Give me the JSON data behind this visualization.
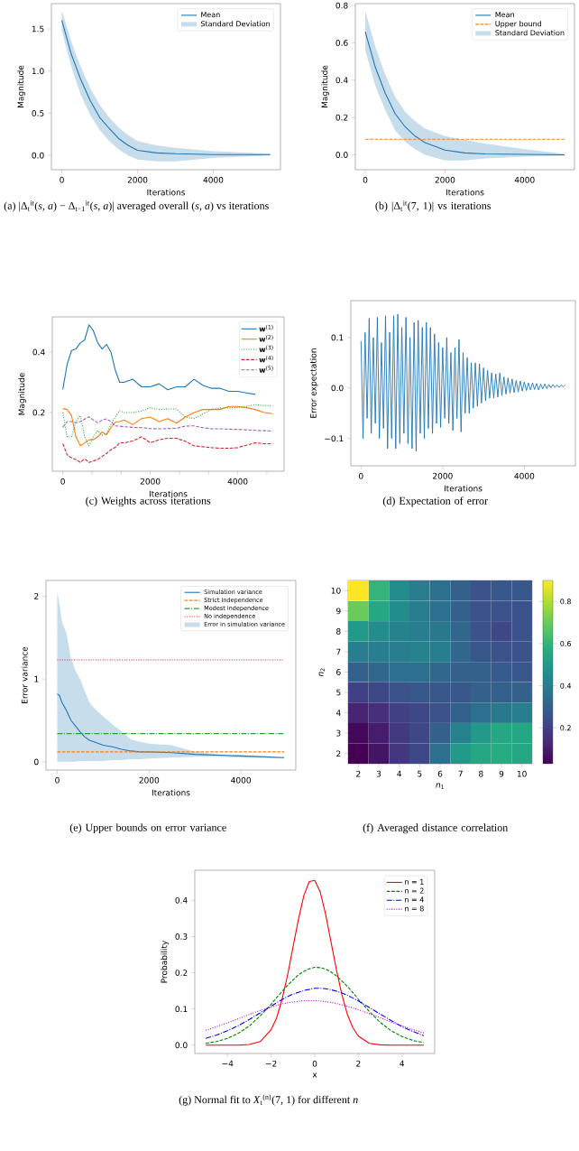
{
  "chart_data": [
    {
      "type": "line",
      "title": "(a) |Δ$_{t}$$^{it}$(*s*, *a*) − Δ$_{t−1}$$^{it}$(*s*, *a*)| averaged overall (*s*, *a*) vs iterations",
      "xlabel": "Iterations",
      "ylabel": "Magnitude",
      "legend": "top right",
      "x": [
        0,
        250,
        500,
        750,
        1000,
        1250,
        1500,
        1750,
        2000,
        2500,
        3000,
        4000,
        5500
      ],
      "series": [
        {
          "name": "Mean",
          "color": "#1f77b4",
          "values": [
            1.6,
            1.2,
            0.9,
            0.65,
            0.45,
            0.32,
            0.2,
            0.12,
            0.06,
            0.03,
            0.02,
            0.01,
            0.01
          ],
          "upper": [
            1.72,
            1.35,
            1.05,
            0.8,
            0.6,
            0.45,
            0.33,
            0.24,
            0.17,
            0.12,
            0.09,
            0.05,
            0.02
          ],
          "lower": [
            1.48,
            1.05,
            0.72,
            0.48,
            0.3,
            0.17,
            0.07,
            0.0,
            -0.05,
            -0.07,
            -0.07,
            -0.03,
            0.0
          ]
        }
      ],
      "annotations": [
        "Standard Deviation"
      ],
      "xlim": [
        -275,
        5775
      ],
      "ylim": [
        -0.17,
        1.8
      ],
      "xticks": [
        0,
        2000,
        4000
      ],
      "yticks": [
        {
          "value": 0,
          "label": "0.0"
        },
        0.5,
        {
          "value": 1,
          "label": "1.0"
        },
        1.5
      ]
    },
    {
      "type": "line",
      "title": "(b) |Δ$_{t}$$^{it}$(7, 1)| vs iterations",
      "xlabel": "Iterations",
      "ylabel": "Magnitude",
      "legend": "top right",
      "x": [
        0,
        250,
        500,
        750,
        1000,
        1250,
        1500,
        2000,
        2500,
        3000,
        4000,
        5000
      ],
      "series": [
        {
          "name": "Mean",
          "color": "#1f77b4",
          "values": [
            0.66,
            0.47,
            0.33,
            0.22,
            0.15,
            0.1,
            0.065,
            0.025,
            0.01,
            0.005,
            0.002,
            0.0
          ],
          "upper": [
            0.77,
            0.58,
            0.43,
            0.31,
            0.23,
            0.18,
            0.14,
            0.1,
            0.08,
            0.06,
            0.03,
            0.005
          ],
          "lower": [
            0.56,
            0.37,
            0.24,
            0.13,
            0.07,
            0.03,
            0.0,
            -0.03,
            -0.03,
            -0.02,
            -0.01,
            -0.005
          ]
        }
      ],
      "annotations": [
        "Standard Deviation"
      ],
      "ref_lines": [
        {
          "axis": "y",
          "value": 0.083,
          "label": "Upper bound",
          "color": "#ff7f0e",
          "line_style": "dashed"
        }
      ],
      "xlim": [
        -250,
        5250
      ],
      "ylim": [
        -0.08,
        0.81
      ],
      "xticks": [
        0,
        2000,
        4000
      ],
      "yticks": [
        {
          "value": 0,
          "label": "0.0"
        },
        0.2,
        0.4,
        0.6,
        0.8
      ]
    },
    {
      "type": "line",
      "title": "(c) Weights across iterations",
      "xlabel": "Iterations",
      "ylabel": "Magnitude",
      "legend": "top right",
      "x": [
        0,
        100,
        200,
        300,
        400,
        500,
        600,
        700,
        800,
        900,
        1000,
        1100,
        1200,
        1300,
        1400,
        1600,
        1800,
        2000,
        2200,
        2400,
        2600,
        2800,
        3000,
        3200,
        3400,
        3600,
        3800,
        4000,
        4200,
        4400,
        4600,
        4800
      ],
      "series": [
        {
          "name": "**w**$^{(1)}$",
          "color": "#1f77b4",
          "line_style": "solid",
          "values": [
            0.276,
            0.36,
            0.405,
            0.41,
            0.43,
            0.44,
            0.49,
            0.47,
            0.43,
            0.41,
            0.425,
            0.4,
            0.34,
            0.3,
            0.3,
            0.31,
            0.285,
            0.285,
            0.295,
            0.275,
            0.285,
            0.285,
            0.31,
            0.29,
            0.28,
            0.28,
            0.27,
            0.27,
            0.265,
            0.26,
            null,
            null
          ]
        },
        {
          "name": "**w**$^{(2)}$",
          "color": "#ff7f0e",
          "line_style": "solid",
          "values": [
            0.213,
            0.21,
            0.19,
            0.12,
            0.09,
            0.1,
            0.11,
            0.11,
            0.12,
            0.136,
            0.126,
            0.15,
            0.168,
            0.17,
            0.175,
            0.16,
            0.18,
            0.185,
            0.17,
            0.18,
            0.165,
            0.185,
            0.2,
            0.21,
            0.21,
            0.21,
            0.22,
            0.22,
            0.216,
            0.21,
            0.2,
            0.196
          ]
        },
        {
          "name": "**w**$^{(3)}$",
          "color": "#2ca02c",
          "line_style": "dotted",
          "values": [
            0.2,
            0.12,
            0.12,
            0.17,
            0.19,
            0.12,
            0.09,
            0.12,
            0.14,
            0.125,
            0.13,
            0.16,
            0.185,
            0.206,
            0.2,
            0.2,
            0.205,
            0.216,
            0.21,
            0.212,
            0.212,
            0.185,
            0.18,
            0.195,
            0.21,
            0.215,
            0.216,
            0.216,
            0.22,
            0.226,
            0.223,
            0.223
          ]
        },
        {
          "name": "**w**$^{(4)}$",
          "color": "#d62728",
          "line_style": "dashed",
          "values": [
            0.097,
            0.06,
            0.05,
            0.045,
            0.035,
            0.047,
            0.035,
            0.04,
            0.045,
            0.055,
            0.065,
            0.077,
            0.085,
            0.1,
            0.1,
            0.106,
            0.12,
            0.1,
            0.11,
            0.115,
            0.115,
            0.105,
            0.09,
            0.087,
            0.084,
            0.082,
            0.082,
            0.084,
            0.092,
            0.1,
            0.097,
            0.097
          ]
        },
        {
          "name": "**w**$^{(5)}$",
          "color": "#9467bd",
          "line_style": "dashed",
          "values": [
            0.151,
            0.17,
            0.17,
            0.166,
            0.17,
            0.178,
            0.186,
            0.175,
            0.166,
            0.175,
            0.179,
            0.17,
            0.156,
            0.155,
            0.153,
            0.151,
            0.15,
            0.147,
            0.146,
            0.147,
            0.148,
            0.155,
            0.156,
            0.15,
            0.146,
            0.146,
            0.145,
            0.144,
            0.143,
            0.141,
            0.14,
            0.139
          ]
        }
      ],
      "xlim": [
        -240,
        5060
      ],
      "ylim": [
        0.006,
        0.516
      ],
      "xticks": [
        0,
        {
          "value": 667,
          "label": null
        },
        {
          "value": 1333,
          "label": null
        },
        2000,
        {
          "value": 2667,
          "label": null
        },
        {
          "value": 3333,
          "label": null
        },
        4000,
        {
          "value": 4667,
          "label": null
        }
      ],
      "yticks": [
        0.2,
        0.4
      ]
    },
    {
      "type": "line",
      "title": "(d) Expectation of error",
      "xlabel": "Iterations",
      "ylabel": "Error expectation",
      "color": "#1f77b4",
      "x": [
        0,
        50,
        100,
        150,
        200,
        250,
        300,
        350,
        400,
        450,
        500,
        550,
        600,
        650,
        700,
        750,
        800,
        850,
        900,
        950,
        1000,
        1050,
        1100,
        1150,
        1200,
        1250,
        1300,
        1350,
        1400,
        1450,
        1500,
        1550,
        1600,
        1650,
        1700,
        1750,
        1800,
        1850,
        1900,
        1950,
        2000,
        2050,
        2100,
        2150,
        2200,
        2250,
        2300,
        2350,
        2400,
        2450,
        2500,
        2550,
        2600,
        2650,
        2700,
        2750,
        2800,
        2850,
        2900,
        2950,
        3000,
        3050,
        3100,
        3150,
        3200,
        3250,
        3300,
        3350,
        3400,
        3450,
        3500,
        3550,
        3600,
        3650,
        3700,
        3750,
        3800,
        3850,
        3900,
        3950,
        4000,
        4050,
        4100,
        4150,
        4200,
        4250,
        4300,
        4350,
        4400,
        4450,
        4500,
        4550,
        4600,
        4650,
        4700,
        4750,
        4800,
        4850,
        4900,
        4950,
        5000
      ],
      "values": [
        0.093,
        -0.1,
        0.11,
        -0.06,
        0.138,
        -0.09,
        0.1,
        -0.07,
        0.14,
        -0.1,
        0.09,
        -0.08,
        0.143,
        -0.12,
        0.11,
        -0.1,
        0.143,
        -0.12,
        0.146,
        -0.11,
        0.12,
        -0.09,
        0.14,
        -0.11,
        0.1,
        -0.12,
        0.13,
        -0.125,
        0.134,
        -0.09,
        0.12,
        -0.1,
        0.13,
        -0.08,
        0.12,
        -0.09,
        0.107,
        -0.07,
        0.09,
        -0.078,
        0.08,
        -0.06,
        0.1,
        -0.07,
        0.07,
        -0.084,
        0.08,
        -0.06,
        0.096,
        -0.087,
        0.07,
        -0.05,
        0.06,
        -0.05,
        0.05,
        -0.04,
        0.05,
        -0.036,
        0.048,
        -0.03,
        0.04,
        -0.025,
        0.035,
        -0.02,
        0.03,
        -0.02,
        0.028,
        -0.018,
        0.03,
        -0.015,
        0.022,
        -0.012,
        0.02,
        -0.01,
        0.018,
        -0.009,
        0.015,
        -0.008,
        0.014,
        -0.006,
        0.012,
        -0.005,
        0.01,
        -0.004,
        0.01,
        -0.003,
        0.009,
        -0.004,
        0.008,
        -0.002,
        0.008,
        -0.001,
        0.007,
        0.0,
        0.007,
        0.001,
        0.006,
        0.001,
        0.006,
        0.002,
        0.006
      ],
      "xlim": [
        -250,
        5250
      ],
      "ylim": [
        -0.154,
        0.173
      ],
      "xticks": [
        0,
        2000,
        4000
      ],
      "yticks": [
        {
          "value": -0.1,
          "label": "−0.1"
        },
        {
          "value": 0,
          "label": "0.0"
        },
        0.1
      ]
    },
    {
      "type": "line",
      "title": "(e) Upper bounds on error variance",
      "xlabel": "Iterations",
      "ylabel": "Error variance",
      "legend": "top right",
      "x": [
        0,
        50,
        100,
        200,
        300,
        400,
        500,
        600,
        700,
        800,
        1000,
        1200,
        1400,
        1600,
        1800,
        2000,
        2500,
        3000,
        3500,
        4000,
        4500,
        4940
      ],
      "series": [
        {
          "name": "Simulation variance",
          "color": "#1f77b4",
          "values": [
            0.82,
            0.8,
            0.72,
            0.62,
            0.5,
            0.43,
            0.36,
            0.3,
            0.26,
            0.24,
            0.2,
            0.18,
            0.15,
            0.13,
            0.12,
            0.12,
            0.11,
            0.09,
            0.08,
            0.07,
            0.06,
            0.05
          ],
          "upper": [
            2.05,
            1.9,
            1.7,
            1.55,
            1.25,
            1.1,
            1.0,
            0.85,
            0.72,
            0.65,
            0.55,
            0.45,
            0.37,
            0.27,
            0.24,
            0.22,
            0.2,
            0.12,
            0.09,
            0.08,
            0.06,
            0.05
          ],
          "lower": [
            0.0,
            0.0,
            0.0,
            0.0,
            0.0,
            0.0,
            0.01,
            0.01,
            0.01,
            0.01,
            0.01,
            0.02,
            0.02,
            0.03,
            0.03,
            0.04,
            0.05,
            0.06,
            0.06,
            0.05,
            0.05,
            0.04
          ]
        }
      ],
      "annotations": [
        "Error in simulation variance"
      ],
      "ref_lines": [
        {
          "axis": "y",
          "value": 0.12,
          "label": "Strict independence",
          "color": "#ff7f0e",
          "line_style": "dashed"
        },
        {
          "axis": "y",
          "value": 0.34,
          "label": "Modest independence",
          "color": "#2ca02c",
          "line_style": "dashdot"
        },
        {
          "axis": "y",
          "value": 1.23,
          "label": "No independence",
          "color": "#d62728",
          "line_style": "dotted"
        }
      ],
      "xlim": [
        -245,
        5195
      ],
      "ylim": [
        -0.1,
        2.19
      ],
      "xticks": [
        0,
        2000,
        4000
      ],
      "yticks": [
        0,
        1,
        2
      ]
    },
    {
      "type": "heatmap",
      "title": "(f) Averaged distance correlation",
      "xlabel": "*n*$_{1}$",
      "ylabel": "*n*$_{2}$",
      "categories": [
        "2",
        "3",
        "4",
        "5",
        "6",
        "7",
        "8",
        "9",
        "10"
      ],
      "y_categories": [
        "10",
        "9",
        "8",
        "7",
        "6",
        "5",
        "4",
        "3",
        "2"
      ],
      "cells": [
        [
          0.9,
          0.6,
          0.45,
          0.4,
          0.35,
          0.3,
          0.25,
          0.27,
          0.27
        ],
        [
          0.7,
          0.55,
          0.45,
          0.4,
          0.35,
          0.3,
          0.25,
          0.25,
          0.25
        ],
        [
          0.5,
          0.45,
          0.42,
          0.4,
          0.38,
          0.32,
          0.25,
          0.22,
          0.25
        ],
        [
          0.4,
          0.4,
          0.4,
          0.42,
          0.4,
          0.32,
          0.27,
          0.25,
          0.25
        ],
        [
          0.3,
          0.32,
          0.35,
          0.35,
          0.32,
          0.3,
          0.3,
          0.28,
          0.27
        ],
        [
          0.2,
          0.22,
          0.25,
          0.27,
          0.27,
          0.27,
          0.3,
          0.3,
          0.3
        ],
        [
          0.12,
          0.15,
          0.2,
          0.22,
          0.25,
          0.3,
          0.35,
          0.38,
          0.4
        ],
        [
          0.05,
          0.1,
          0.18,
          0.22,
          0.3,
          0.42,
          0.5,
          0.55,
          0.55
        ],
        [
          0.03,
          0.08,
          0.17,
          0.22,
          0.35,
          0.5,
          0.55,
          0.57,
          0.55
        ]
      ],
      "clim": [
        0.03,
        0.9
      ],
      "cticks": [
        0.2,
        0.4,
        0.6,
        0.8
      ]
    },
    {
      "type": "line",
      "title": "(g) Normal fit to *X*$_{t}$$^{(n)}$(7, 1) for different *n*",
      "xlabel": "x",
      "ylabel": "Probability",
      "legend": "top right",
      "x": [
        -5,
        -4.5,
        -4,
        -3.5,
        -3,
        -2.5,
        -2,
        -1.75,
        -1.5,
        -1.25,
        -1,
        -0.75,
        -0.5,
        -0.25,
        0,
        0.25,
        0.5,
        0.75,
        1,
        1.25,
        1.5,
        1.75,
        2,
        2.5,
        3,
        3.5,
        4,
        4.5,
        5
      ],
      "series": [
        {
          "name": "n = 1",
          "color": "#ff0000",
          "line_style": "solid",
          "values": [
            0,
            0,
            0,
            0,
            0.002,
            0.01,
            0.043,
            0.075,
            0.126,
            0.192,
            0.27,
            0.347,
            0.413,
            0.452,
            0.455,
            0.423,
            0.361,
            0.284,
            0.206,
            0.138,
            0.084,
            0.048,
            0.025,
            0.005,
            0.001,
            0,
            0,
            0,
            0
          ]
        },
        {
          "name": "n = 2",
          "color": "#008000",
          "line_style": "dashed",
          "values": [
            0.005,
            0.01,
            0.019,
            0.033,
            0.053,
            0.081,
            0.113,
            0.131,
            0.148,
            0.165,
            0.18,
            0.194,
            0.204,
            0.211,
            0.215,
            0.214,
            0.21,
            0.202,
            0.191,
            0.177,
            0.162,
            0.145,
            0.127,
            0.093,
            0.063,
            0.04,
            0.024,
            0.013,
            0.007
          ]
        },
        {
          "name": "n = 4",
          "color": "#0000ff",
          "line_style": "dashdot",
          "values": [
            0.019,
            0.028,
            0.04,
            0.054,
            0.071,
            0.089,
            0.108,
            0.117,
            0.126,
            0.134,
            0.141,
            0.146,
            0.151,
            0.154,
            0.157,
            0.157,
            0.156,
            0.153,
            0.149,
            0.144,
            0.138,
            0.13,
            0.122,
            0.104,
            0.086,
            0.068,
            0.051,
            0.038,
            0.026
          ]
        },
        {
          "name": "n = 8",
          "color": "#bf00bf",
          "line_style": "dotted",
          "values": [
            0.041,
            0.051,
            0.062,
            0.073,
            0.085,
            0.096,
            0.105,
            0.11,
            0.114,
            0.117,
            0.119,
            0.121,
            0.123,
            0.123,
            0.123,
            0.122,
            0.12,
            0.118,
            0.115,
            0.111,
            0.107,
            0.103,
            0.098,
            0.087,
            0.076,
            0.064,
            0.053,
            0.043,
            0.034
          ]
        }
      ],
      "xlim": [
        -5.5,
        5.5
      ],
      "ylim": [
        -0.023,
        0.483
      ],
      "xticks": [
        {
          "value": -4,
          "label": "−4"
        },
        {
          "value": -2,
          "label": "−2"
        },
        0,
        2,
        4
      ],
      "yticks": [
        {
          "value": 0,
          "label": "0.0"
        },
        0.1,
        0.2,
        0.3,
        0.4
      ]
    }
  ]
}
